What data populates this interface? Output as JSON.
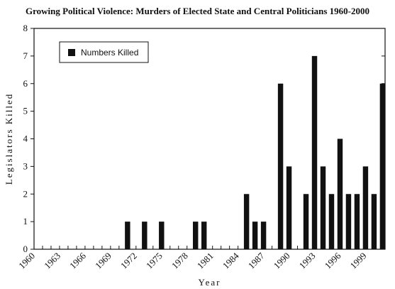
{
  "chart_data": {
    "type": "bar",
    "title": "Growing Political Violence: Murders of Elected State and Central Politicians 1960-2000",
    "xlabel": "Year",
    "ylabel": "Legislators Killed",
    "ylim": [
      0,
      8
    ],
    "yticks": [
      "0",
      "1",
      "2",
      "3",
      "4",
      "5",
      "6",
      "7",
      "8"
    ],
    "xticks": [
      "1960",
      "1963",
      "1966",
      "1969",
      "1972",
      "1975",
      "1978",
      "1981",
      "1984",
      "1987",
      "1990",
      "1993",
      "1996",
      "1999"
    ],
    "xlim": [
      1960,
      2001
    ],
    "grid": false,
    "legend_position": "top-left",
    "series": [
      {
        "name": "Numbers Killed",
        "color": "#111111",
        "x": [
          1971,
          1973,
          1975,
          1979,
          1980,
          1985,
          1986,
          1987,
          1989,
          1990,
          1992,
          1993,
          1994,
          1995,
          1996,
          1997,
          1998,
          1999,
          2000,
          2001
        ],
        "values": [
          1,
          1,
          1,
          1,
          1,
          2,
          1,
          1,
          6,
          3,
          2,
          7,
          3,
          2,
          4,
          2,
          2,
          3,
          2,
          6
        ]
      }
    ]
  }
}
